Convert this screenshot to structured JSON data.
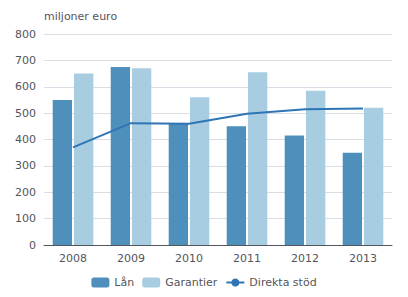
{
  "chart_data": {
    "type": "bar",
    "ylabel": "miljoner euro",
    "categories": [
      "2008",
      "2009",
      "2010",
      "2011",
      "2012",
      "2013"
    ],
    "series": [
      {
        "name": "Lån",
        "type": "bar",
        "color": "#4e8fbc",
        "values": [
          550,
          675,
          460,
          450,
          415,
          350
        ]
      },
      {
        "name": "Garantier",
        "type": "bar",
        "color": "#a8cce0",
        "values": [
          650,
          670,
          560,
          655,
          585,
          520
        ]
      },
      {
        "name": "Direkta stöd",
        "type": "line",
        "color": "#2e75b6",
        "values": [
          370,
          462,
          460,
          498,
          515,
          518
        ]
      }
    ],
    "ylim": [
      0,
      800
    ],
    "yticks": [
      0,
      100,
      200,
      300,
      400,
      500,
      600,
      700,
      800
    ],
    "grid": true,
    "legend": "bottom"
  }
}
